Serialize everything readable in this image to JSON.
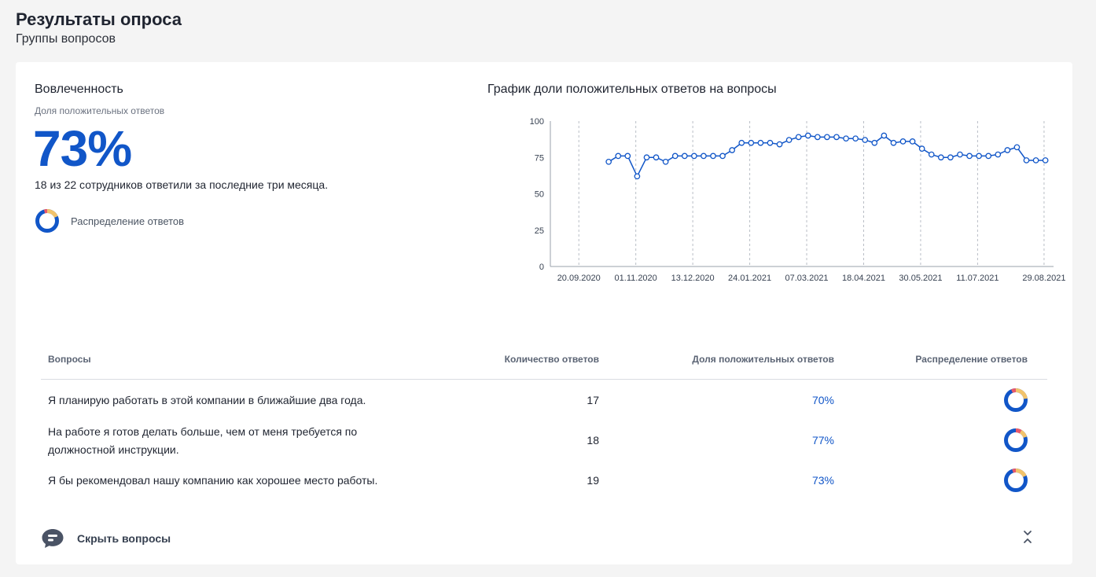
{
  "header": {
    "title": "Результаты опроса",
    "subtitle": "Группы вопросов"
  },
  "engagement": {
    "title": "Вовлеченность",
    "caption": "Доля положительных ответов",
    "value": "73%",
    "note": "18 из 22 сотрудников ответили за последние три месяца.",
    "distribution_label": "Распределение ответов"
  },
  "chart_title": "График доли положительных ответов на вопросы",
  "chart_data": {
    "type": "line",
    "title": "График доли положительных ответов на вопросы",
    "ylim": [
      0,
      100
    ],
    "yticks": [
      "0",
      "25",
      "50",
      "75",
      "100"
    ],
    "xticks": [
      "20.09.2020",
      "01.11.2020",
      "13.12.2020",
      "24.01.2021",
      "07.03.2021",
      "18.04.2021",
      "30.05.2021",
      "11.07.2021",
      "29.08.2021"
    ],
    "xlim": [
      "2020-08-30",
      "2021-09-05"
    ],
    "grid": "vertical dashed",
    "color": "#1156c8",
    "x": [
      "2020-10-12",
      "2020-10-19",
      "2020-10-26",
      "2020-11-02",
      "2020-11-09",
      "2020-11-16",
      "2020-11-23",
      "2020-11-30",
      "2020-12-07",
      "2020-12-14",
      "2020-12-21",
      "2020-12-28",
      "2021-01-04",
      "2021-01-11",
      "2021-01-18",
      "2021-01-25",
      "2021-02-01",
      "2021-02-08",
      "2021-02-15",
      "2021-02-22",
      "2021-03-01",
      "2021-03-08",
      "2021-03-15",
      "2021-03-22",
      "2021-03-29",
      "2021-04-05",
      "2021-04-12",
      "2021-04-19",
      "2021-04-26",
      "2021-05-03",
      "2021-05-10",
      "2021-05-17",
      "2021-05-24",
      "2021-05-31",
      "2021-06-07",
      "2021-06-14",
      "2021-06-21",
      "2021-06-28",
      "2021-07-05",
      "2021-07-12",
      "2021-07-19",
      "2021-07-26",
      "2021-08-02",
      "2021-08-09",
      "2021-08-16",
      "2021-08-23",
      "2021-08-30"
    ],
    "y": [
      72,
      76,
      76,
      62,
      75,
      75,
      72,
      76,
      76,
      76,
      76,
      76,
      76,
      80,
      85,
      85,
      85,
      85,
      84,
      87,
      89,
      90,
      89,
      89,
      89,
      88,
      88,
      87,
      85,
      90,
      85,
      86,
      86,
      81,
      77,
      75,
      75,
      77,
      76,
      76,
      76,
      77,
      80,
      82,
      73,
      73,
      73
    ]
  },
  "table": {
    "headers": {
      "question": "Вопросы",
      "count": "Количество ответов",
      "positive": "Доля положительных ответов",
      "distribution": "Распределение ответов"
    },
    "rows": [
      {
        "question": "Я планирую работать в этой компании в ближайшие два года.",
        "count": "17",
        "positive": "70%"
      },
      {
        "question": "На работе я готов делать больше, чем от меня требуется по должностной инструкции.",
        "count": "18",
        "positive": "77%"
      },
      {
        "question": "Я бы рекомендовал нашу компанию как хорошее место работы.",
        "count": "19",
        "positive": "73%"
      }
    ]
  },
  "footer": {
    "hide_label": "Скрыть вопросы"
  },
  "icons": {
    "donut": "donut-chart-icon",
    "chat": "chat-bubble-icon",
    "collapse": "chevrons-collapse-icon"
  },
  "colors": {
    "accent": "#1156c8",
    "donut_positive": "#1156c8",
    "donut_neutral": "#f2c36b",
    "donut_negative": "#e8596b"
  }
}
